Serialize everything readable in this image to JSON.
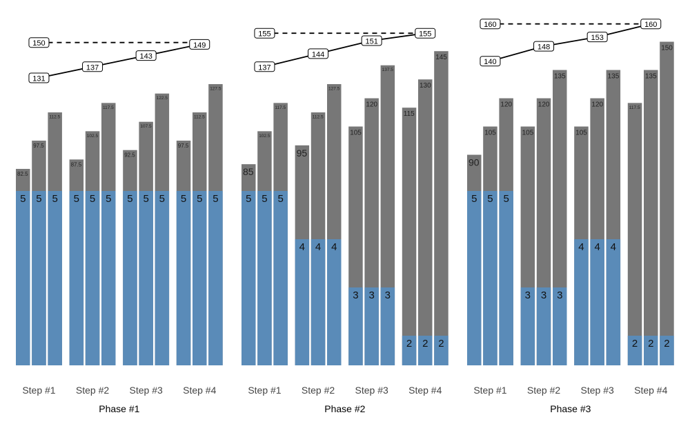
{
  "chart_data": {
    "type": "bar",
    "colors": {
      "bar_total": "#777777",
      "bar_level": "#5a8bb8",
      "line": "#000000"
    },
    "grid": false,
    "phases": [
      {
        "label": "Phase #1",
        "steps": [
          "Step #1",
          "Step #2",
          "Step #3",
          "Step #4"
        ],
        "bar_values": [
          [
            82.5,
            97.5,
            112.5
          ],
          [
            87.5,
            102.5,
            117.5
          ],
          [
            92.5,
            107.5,
            122.5
          ],
          [
            97.5,
            112.5,
            127.5
          ]
        ],
        "level_values": [
          5,
          5,
          5,
          5
        ],
        "line_values": [
          131,
          137,
          143,
          149
        ],
        "target": 150
      },
      {
        "label": "Phase #2",
        "steps": [
          "Step #1",
          "Step #2",
          "Step #3",
          "Step #4"
        ],
        "bar_values": [
          [
            85,
            102.5,
            117.5
          ],
          [
            95,
            112.5,
            127.5
          ],
          [
            105,
            120,
            137.5
          ],
          [
            115,
            130,
            145
          ]
        ],
        "level_values": [
          5,
          4,
          3,
          2
        ],
        "line_values": [
          137,
          144,
          151,
          155
        ],
        "target": 155
      },
      {
        "label": "Phase #3",
        "steps": [
          "Step #1",
          "Step #2",
          "Step #3",
          "Step #4"
        ],
        "bar_values": [
          [
            90,
            105,
            120
          ],
          [
            105,
            120,
            135
          ],
          [
            105,
            120,
            135
          ],
          [
            117.5,
            135,
            150
          ]
        ],
        "level_values": [
          5,
          3,
          4,
          2
        ],
        "line_values": [
          140,
          148,
          153,
          160
        ],
        "target": 160
      }
    ]
  }
}
